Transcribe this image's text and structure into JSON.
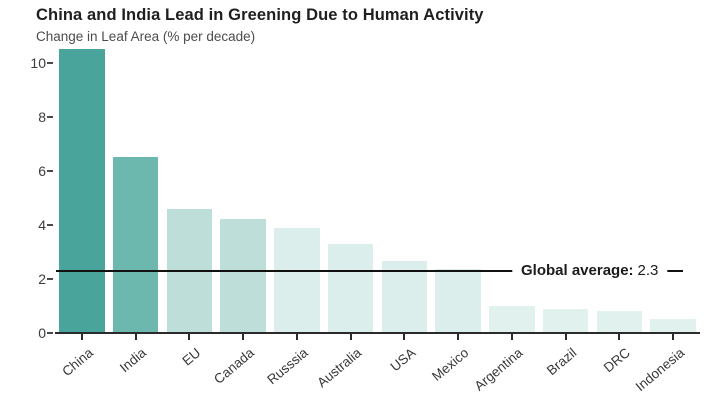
{
  "title": "China and India Lead in Greening Due to Human Activity",
  "subtitle": "Change in Leaf Area (% per decade)",
  "chart_data": {
    "type": "bar",
    "title": "China and India Lead in Greening Due to Human Activity",
    "subtitle": "Change in Leaf Area (% per decade)",
    "categories": [
      "China",
      "India",
      "EU",
      "Canada",
      "Russsia",
      "Australia",
      "USA",
      "Mexico",
      "Argentina",
      "Brazil",
      "DRC",
      "Indonesia"
    ],
    "values": [
      10.5,
      6.5,
      4.6,
      4.2,
      3.9,
      3.3,
      2.65,
      2.35,
      1.0,
      0.9,
      0.8,
      0.5
    ],
    "bar_colors": [
      "#49a49b",
      "#6cb8ae",
      "#bedfd9",
      "#bedfd9",
      "#dceeeb",
      "#dceeeb",
      "#dceeeb",
      "#dceeeb",
      "#e0f1ee",
      "#e0f1ee",
      "#e0f1ee",
      "#e0f1ee"
    ],
    "xlabel": "",
    "ylabel": "Change in Leaf Area (% per decade)",
    "ylim": [
      0,
      10.8
    ],
    "yticks": [
      0,
      2,
      4,
      6,
      8,
      10
    ],
    "grid": false,
    "legend": null,
    "annotation": {
      "label": "Global average:",
      "display": "2.3",
      "value": 2.3,
      "line_end_x_fraction": 0.973,
      "label_center_x_fraction": 0.829
    },
    "axis_color": "#2b2b2b",
    "annotation_line_color": "#111111"
  }
}
